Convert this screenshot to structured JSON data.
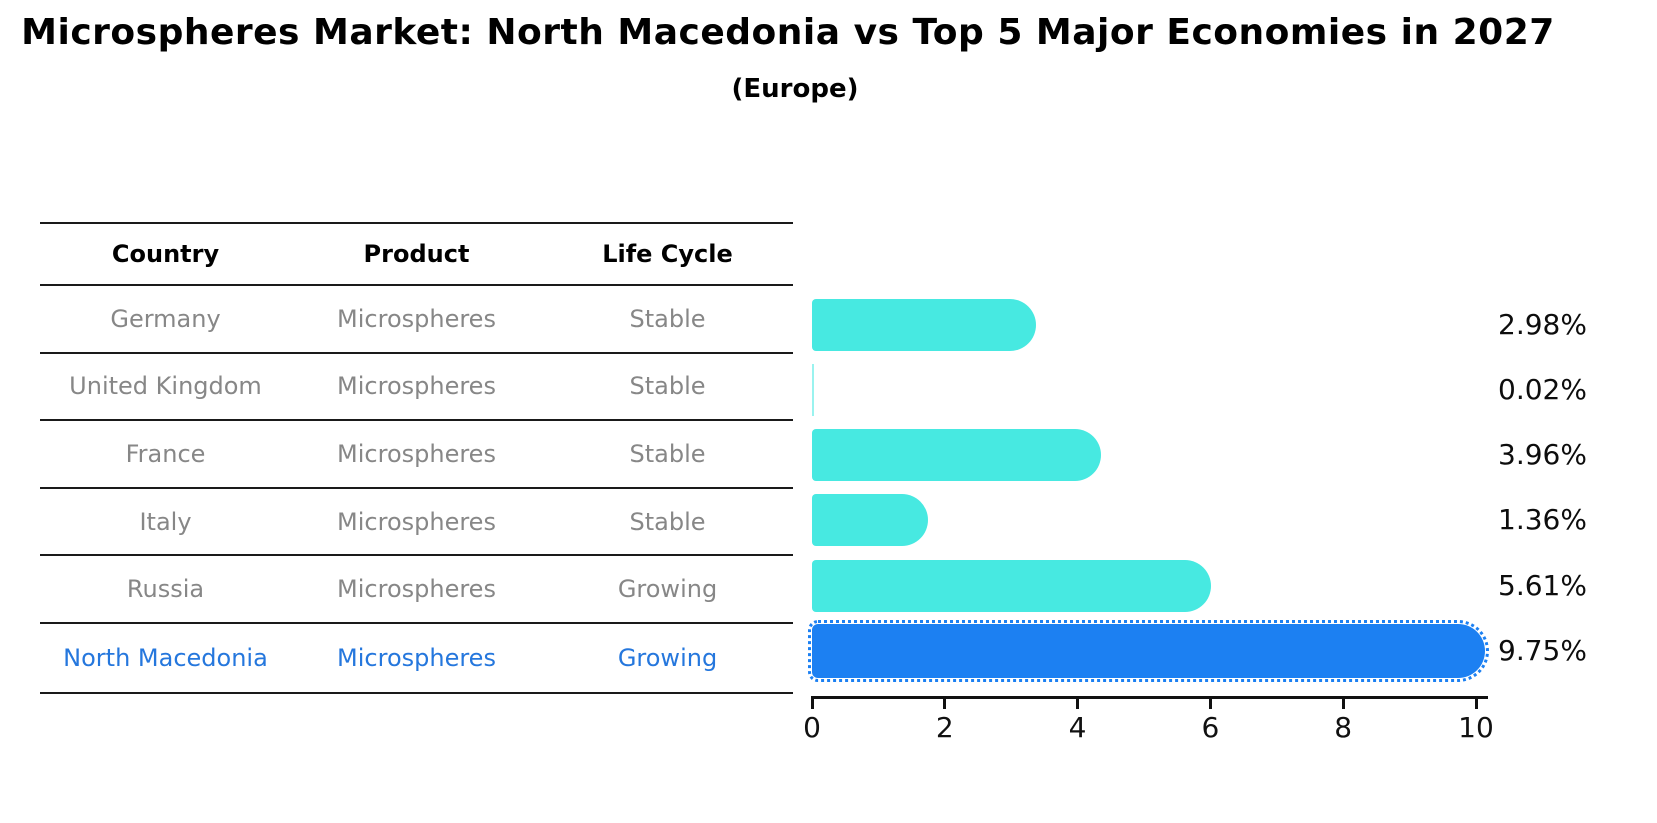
{
  "title": "Microspheres Market: North Macedonia vs Top 5 Major Economies in 2027",
  "subtitle": "(Europe)",
  "table": {
    "headers": [
      "Country",
      "Product",
      "Life Cycle"
    ],
    "rows": [
      {
        "country": "Germany",
        "product": "Microspheres",
        "life_cycle": "Stable",
        "highlighted": false
      },
      {
        "country": "United Kingdom",
        "product": "Microspheres",
        "life_cycle": "Stable",
        "highlighted": false
      },
      {
        "country": "France",
        "product": "Microspheres",
        "life_cycle": "Stable",
        "highlighted": false
      },
      {
        "country": "Italy",
        "product": "Microspheres",
        "life_cycle": "Stable",
        "highlighted": false
      },
      {
        "country": "Russia",
        "product": "Microspheres",
        "life_cycle": "Growing",
        "highlighted": false
      },
      {
        "country": "North Macedonia",
        "product": "Microspheres",
        "life_cycle": "Growing",
        "highlighted": true
      }
    ]
  },
  "chart_data": {
    "type": "bar",
    "orientation": "horizontal",
    "categories": [
      "Germany",
      "United Kingdom",
      "France",
      "Italy",
      "Russia",
      "North Macedonia"
    ],
    "values": [
      2.98,
      0.02,
      3.96,
      1.36,
      5.61,
      9.75
    ],
    "value_labels": [
      "2.98%",
      "0.02%",
      "3.96%",
      "1.36%",
      "5.61%",
      "9.75%"
    ],
    "xlim": [
      0,
      10
    ],
    "x_ticks": [
      "0",
      "2",
      "4",
      "6",
      "8",
      "10"
    ],
    "grid": false,
    "legend": "none",
    "bar_color": "#47e9e1",
    "highlight_color": "#1c80f2",
    "highlight_index": 5,
    "highlight_edge_style": "dotted"
  },
  "colors": {
    "row_text": "#878787",
    "highlight_text": "#2577dd",
    "line": "#1a1a1a",
    "label_text": "#0d0d0d"
  }
}
